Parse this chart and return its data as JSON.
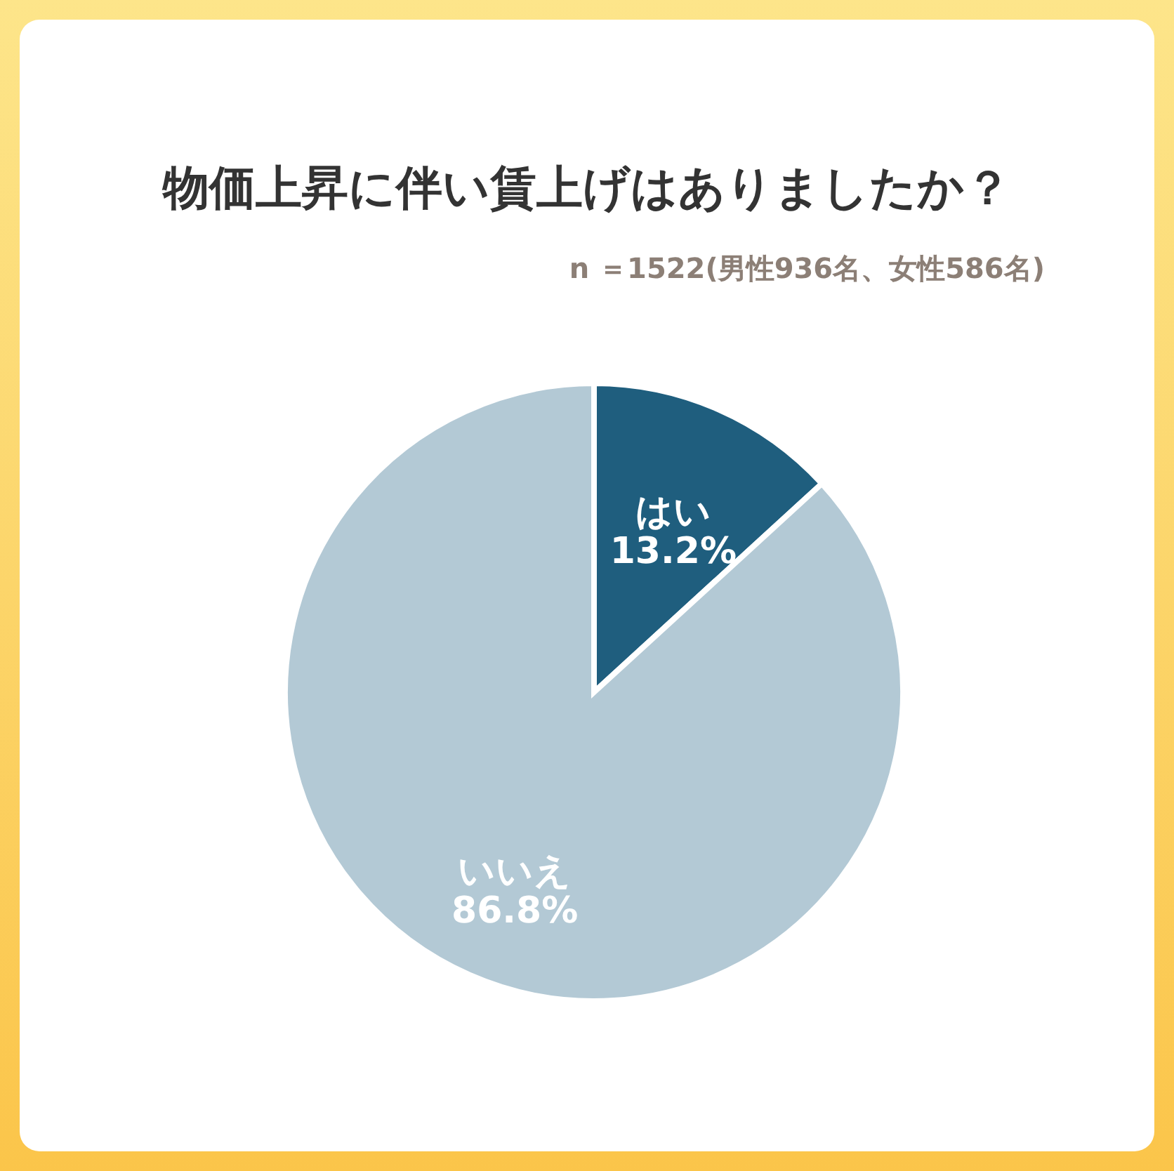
{
  "chart_data": {
    "type": "pie",
    "title": "物価上昇に伴い賃上げはありましたか？",
    "subtitle": "n ＝1522(男性936名、女性586名)",
    "categories": [
      "はい",
      "いいえ"
    ],
    "values": [
      13.2,
      86.8
    ],
    "colors": [
      "#1f5e7e",
      "#b3c9d5"
    ],
    "value_labels": [
      "13.2%",
      "86.8%"
    ],
    "legend": false
  }
}
